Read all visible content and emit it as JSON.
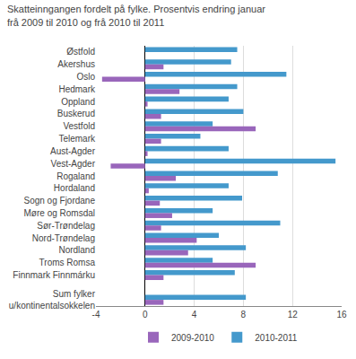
{
  "chart_data": {
    "type": "bar",
    "orientation": "horizontal",
    "title": "Skatteinngangen fordelt på fylke. Prosentvis endring januar\nfrå 2009 til 2010 og frå 2010 til 2011",
    "categories": [
      "Østfold",
      "Akershus",
      "Oslo",
      "Hedmark",
      "Oppland",
      "Buskerud",
      "Vestfold",
      "Telemark",
      "Aust-Agder",
      "Vest-Agder",
      "Rogaland",
      "Hordaland",
      "Sogn og Fjordane",
      "Møre og Romsdal",
      "Sør-Trøndelag",
      "Nord-Trøndelag",
      "Nordland",
      "Troms Romsa",
      "Finnmark Finnmárku",
      null,
      "Sum fylker\nu/kontinentalsokkelen"
    ],
    "series": [
      {
        "name": "2009-2010",
        "color": "#9966bb",
        "values": [
          0.0,
          1.5,
          -3.5,
          2.8,
          0.2,
          1.3,
          9.0,
          1.3,
          0.2,
          -2.8,
          2.5,
          0.3,
          1.2,
          2.2,
          1.3,
          4.2,
          3.5,
          9.0,
          1.5,
          null,
          1.5
        ]
      },
      {
        "name": "2010-2011",
        "color": "#4499cc",
        "values": [
          7.5,
          7.0,
          11.5,
          7.5,
          6.8,
          8.0,
          5.5,
          4.5,
          6.8,
          15.5,
          10.8,
          6.8,
          7.9,
          5.5,
          11.0,
          6.0,
          8.2,
          5.5,
          7.3,
          null,
          8.2
        ]
      }
    ],
    "xlim": [
      -4,
      16
    ],
    "xticks": [
      -4,
      0,
      4,
      8,
      12,
      16
    ],
    "grid": true,
    "legend": "bottom"
  }
}
